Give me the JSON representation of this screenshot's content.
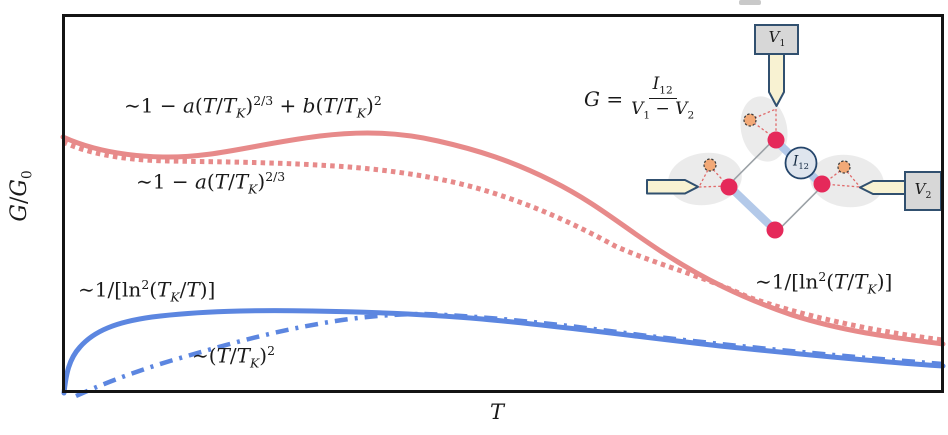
{
  "figure": {
    "x_axis_label": "T",
    "y_axis_label": "G/G_{0}",
    "annotations": {
      "red_solid_label": "∼1 − a(T/T_{K})^{2/3} + b(T/T_{K})^{2}",
      "red_dotted_label": "∼1 − a(T/T_{K})^{2/3}",
      "blue_solid_label": "∼1/[ln^{2}(T_{K}/T)]",
      "blue_dashdot_label": "∼(T/T_{K})^{2}",
      "red_high_t_label": "∼1/[ln^{2}(T/T_{K})]"
    },
    "inset": {
      "conductance_formula": {
        "lhs": "G =",
        "numerator": "I_{12}",
        "denominator": "V_{1} − V_{2}"
      },
      "lead_v1_label": "V_{1}",
      "lead_v2_label": "V_{2}",
      "current_probe_label": "I_{12}"
    },
    "colors": {
      "red_curve": "#E78A8A",
      "blue_curve": "#5C86E0",
      "frame": "#141414",
      "quantum_dot_red": "#E5295A",
      "impurity_orange": "#F2A977",
      "impurity_ring": "#3A3A3A",
      "lead_fill": "#F8F2D2",
      "lead_border": "#31506F",
      "label_box_fill": "#D7D7D7",
      "bond_blue": "#B3C9E9",
      "current_circle_fill": "#DFE5EE",
      "current_circle_border": "#24456B",
      "shadow_gray": "#EBEBEB",
      "dashed_connector_red": "#E06A6A",
      "ring_outline_gray": "#9BA1A6",
      "stray_mark_gray": "#C9C9C9"
    }
  },
  "chart_data": {
    "type": "line",
    "title": "",
    "xlabel": "T",
    "ylabel": "G/G_0",
    "legend": "none (curve formulas annotated inline)",
    "axes_note": "Schematic sketch without numeric ticks; x is temperature T normalized 0-1 across frame, y is conductance G/G0 estimated 0-1.",
    "series": [
      {
        "name": "∼1 − a(T/T_K)^(2/3) + b(T/T_K)^2 (red solid)",
        "style": "solid",
        "color": "#E78A8A",
        "x": [
          0.001,
          0.054,
          0.117,
          0.19,
          0.27,
          0.366,
          0.429,
          0.497,
          0.565,
          0.633,
          0.701,
          0.769,
          0.837,
          0.905,
          1.0
        ],
        "y": [
          0.675,
          0.641,
          0.623,
          0.641,
          0.668,
          0.686,
          0.66,
          0.615,
          0.546,
          0.435,
          0.33,
          0.253,
          0.198,
          0.164,
          0.129
        ]
      },
      {
        "name": "∼1 − a(T/T_K)^(2/3) (red dotted)",
        "style": "dotted",
        "color": "#E78A8A",
        "x": [
          0.001,
          0.066,
          0.134,
          0.213,
          0.293,
          0.372,
          0.44,
          0.497,
          0.553,
          0.61,
          0.667,
          0.723,
          0.78,
          0.837,
          0.905,
          0.999
        ],
        "y": [
          0.662,
          0.615,
          0.612,
          0.609,
          0.602,
          0.588,
          0.565,
          0.528,
          0.483,
          0.404,
          0.346,
          0.309,
          0.253,
          0.208,
          0.169,
          0.14
        ]
      },
      {
        "name": "∼1/[ln^2(T_K/T)] at low T, ∼1/[ln^2(T/T_K)] at high T (blue solid)",
        "style": "solid",
        "color": "#5C86E0",
        "x": [
          0.002,
          0.009,
          0.023,
          0.054,
          0.102,
          0.179,
          0.27,
          0.361,
          0.451,
          0.542,
          0.633,
          0.723,
          0.814,
          0.905,
          1.0
        ],
        "y": [
          0.0,
          0.074,
          0.127,
          0.174,
          0.201,
          0.214,
          0.216,
          0.214,
          0.201,
          0.182,
          0.156,
          0.132,
          0.111,
          0.09,
          0.071
        ]
      },
      {
        "name": "∼(T/T_K)^2 (blue dash-dot)",
        "style": "dash-dot",
        "color": "#5C86E0",
        "x": [
          0.016,
          0.066,
          0.122,
          0.185,
          0.247,
          0.304,
          0.361,
          0.41,
          0.497,
          0.587,
          0.678,
          0.769,
          0.859,
          1.0
        ],
        "y": [
          0.0,
          0.034,
          0.084,
          0.127,
          0.166,
          0.187,
          0.206,
          0.208,
          0.198,
          0.179,
          0.15,
          0.124,
          0.103,
          0.077
        ]
      }
    ]
  }
}
